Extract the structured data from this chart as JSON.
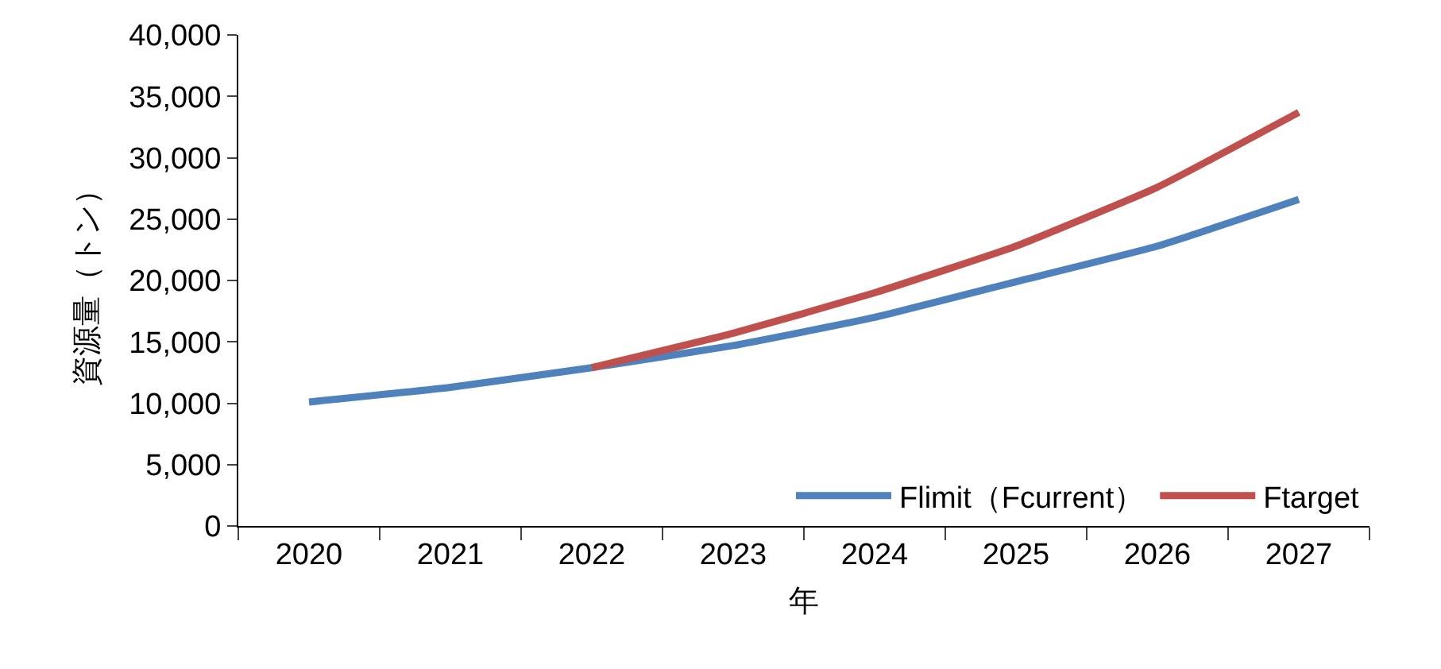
{
  "chart_data": {
    "type": "line",
    "xlabel": "年",
    "ylabel": "資源量（トン）",
    "categories": [
      "2020",
      "2021",
      "2022",
      "2023",
      "2024",
      "2025",
      "2026",
      "2027"
    ],
    "series": [
      {
        "name": "Flimit（Fcurrent）",
        "color": "#4f81bd",
        "values": [
          10100,
          11300,
          12900,
          14700,
          17000,
          19900,
          22800,
          26600
        ]
      },
      {
        "name": "Ftarget",
        "color": "#c0504d",
        "values": [
          null,
          null,
          12900,
          15700,
          19000,
          22800,
          27600,
          33700
        ]
      }
    ],
    "ylim": [
      0,
      40000
    ],
    "yticks": [
      {
        "value": 0,
        "label": "0"
      },
      {
        "value": 5000,
        "label": "5,000"
      },
      {
        "value": 10000,
        "label": "10,000"
      },
      {
        "value": 15000,
        "label": "15,000"
      },
      {
        "value": 20000,
        "label": "20,000"
      },
      {
        "value": 25000,
        "label": "25,000"
      },
      {
        "value": 30000,
        "label": "30,000"
      },
      {
        "value": 35000,
        "label": "35,000"
      },
      {
        "value": 40000,
        "label": "40,000"
      }
    ],
    "grid": false,
    "legend": "bottom right",
    "marker": "none",
    "line_style": "solid"
  }
}
